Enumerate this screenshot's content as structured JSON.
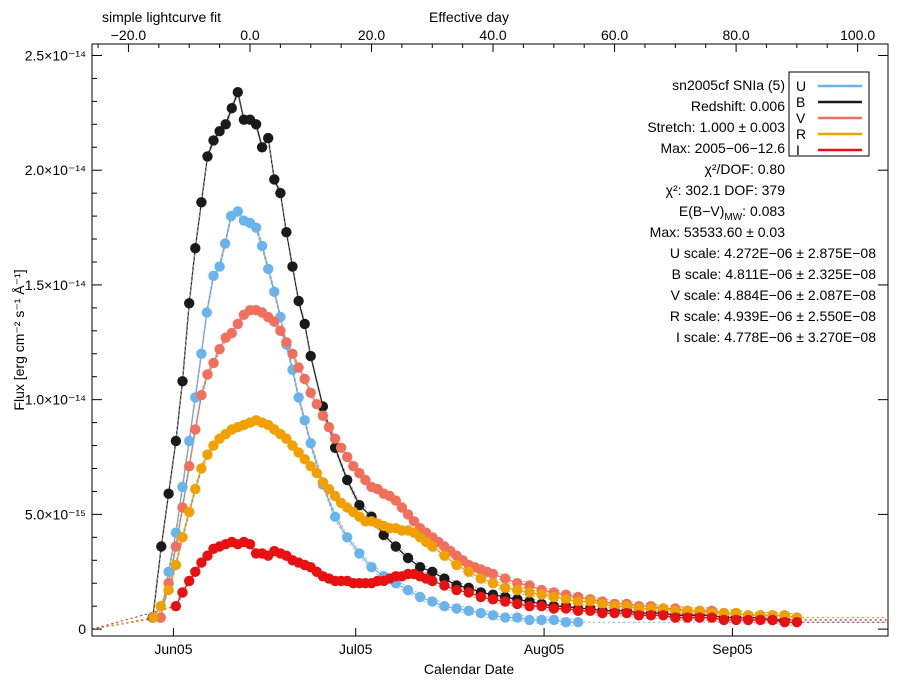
{
  "chart_data": {
    "type": "scatter",
    "title": "simple lightcurve fit",
    "top_axis": {
      "label": "Effective day",
      "range": [
        -26.0,
        105.0
      ],
      "ticks": [
        {
          "v": -20,
          "t": "−20.0"
        },
        {
          "v": 0,
          "t": "0.0"
        },
        {
          "v": 20,
          "t": "20.0"
        },
        {
          "v": 40,
          "t": "40.0"
        },
        {
          "v": 60,
          "t": "60.0"
        },
        {
          "v": 80,
          "t": "80.0"
        },
        {
          "v": 100,
          "t": "100.0"
        }
      ]
    },
    "bottom_axis": {
      "label": "Calendar Date",
      "ticks": [
        {
          "v": -12.6,
          "t": "Jun05"
        },
        {
          "v": 17.4,
          "t": "Jul05"
        },
        {
          "v": 48.4,
          "t": "Aug05"
        },
        {
          "v": 79.4,
          "t": "Sep05"
        }
      ]
    },
    "y_axis": {
      "label": "Flux [erg cm⁻² s⁻¹ Å⁻¹]",
      "range": [
        -3e-16,
        2.55e-14
      ],
      "ticks": [
        {
          "v": 0,
          "t": "0"
        },
        {
          "v": 5e-15,
          "t": "5.0×10⁻¹⁵"
        },
        {
          "v": 1e-14,
          "t": "1.0×10⁻¹⁴"
        },
        {
          "v": 1.5e-14,
          "t": "1.5×10⁻¹⁴"
        },
        {
          "v": 2e-14,
          "t": "2.0×10⁻¹⁴"
        },
        {
          "v": 2.5e-14,
          "t": "2.5×10⁻¹⁴"
        }
      ]
    },
    "grid": false,
    "legend_position": "top-right",
    "series": [
      {
        "name": "U",
        "color": "#6ab4ee",
        "x": [
          -14.7,
          -13.4,
          -12.2,
          -11.1,
          -10.0,
          -9.0,
          -8.0,
          -7.1,
          -6.0,
          -5.0,
          -4.1,
          -3.1,
          -2.0,
          -1.0,
          0.0,
          1.0,
          2.0,
          3.0,
          4.0,
          5.0,
          6.0,
          7.0,
          8.0,
          9.0,
          10.0,
          12.0,
          14.0,
          16.0,
          18.0,
          20.0,
          22.0,
          24.0,
          26.0,
          28.0,
          30.0,
          32.0,
          34.0,
          36.0,
          38.0,
          40.0,
          42.0,
          44.0,
          46.0,
          48.0,
          50.0,
          52.0,
          54.0
        ],
        "y": [
          0.05,
          0.25,
          0.42,
          0.62,
          0.82,
          1.01,
          1.2,
          1.38,
          1.54,
          1.58,
          1.68,
          1.8,
          1.82,
          1.78,
          1.77,
          1.75,
          1.67,
          1.57,
          1.47,
          1.36,
          1.24,
          1.13,
          1.01,
          0.91,
          0.81,
          0.63,
          0.49,
          0.4,
          0.33,
          0.27,
          0.23,
          0.2,
          0.17,
          0.14,
          0.12,
          0.1,
          0.09,
          0.08,
          0.07,
          0.06,
          0.05,
          0.05,
          0.04,
          0.04,
          0.04,
          0.03,
          0.03
        ]
      },
      {
        "name": "B",
        "color": "#1a1a1a",
        "x": [
          -16.0,
          -14.6,
          -13.4,
          -12.2,
          -11.1,
          -10.0,
          -9.0,
          -8.0,
          -7.0,
          -6.0,
          -5.0,
          -4.0,
          -3.0,
          -2.0,
          -1.0,
          0.0,
          1.0,
          2.0,
          3.0,
          4.0,
          5.0,
          6.0,
          7.0,
          8.0,
          9.0,
          10.0,
          12.0,
          14.0,
          16.0,
          18.0,
          20.0,
          22.0,
          24.0,
          26.0,
          28.0,
          30.0,
          32.0,
          34.0,
          36.0,
          38.0,
          40.0,
          42.0,
          44.0,
          46.0,
          48.0,
          50.0,
          52.0,
          54.0,
          56.0,
          58.0,
          60.0,
          62.0,
          64.0,
          66.0,
          68.0,
          70.0,
          72.0,
          74.0,
          76.0,
          78.0,
          80.0,
          82.0,
          84.0,
          86.0,
          88.0
        ],
        "y": [
          0.05,
          0.36,
          0.59,
          0.82,
          1.08,
          1.42,
          1.66,
          1.86,
          2.06,
          2.13,
          2.17,
          2.2,
          2.27,
          2.34,
          2.22,
          2.22,
          2.2,
          2.1,
          2.14,
          1.96,
          1.9,
          1.73,
          1.58,
          1.43,
          1.33,
          1.19,
          0.97,
          0.79,
          0.65,
          0.54,
          0.49,
          0.41,
          0.36,
          0.31,
          0.27,
          0.25,
          0.22,
          0.19,
          0.18,
          0.16,
          0.15,
          0.14,
          0.13,
          0.12,
          0.11,
          0.1,
          0.1,
          0.09,
          0.09,
          0.08,
          0.08,
          0.08,
          0.07,
          0.07,
          0.07,
          0.06,
          0.06,
          0.06,
          0.06,
          0.05,
          0.05,
          0.05,
          0.05,
          0.04,
          0.04
        ]
      },
      {
        "name": "V",
        "color": "#f0705c",
        "x": [
          -14.7,
          -13.4,
          -12.2,
          -11.1,
          -10.0,
          -9.0,
          -8.0,
          -7.0,
          -6.0,
          -5.0,
          -4.0,
          -3.0,
          -2.0,
          -1.0,
          0.0,
          1.0,
          2.0,
          3.0,
          4.0,
          5.0,
          6.0,
          7.0,
          8.0,
          9.0,
          10.0,
          11.0,
          12.0,
          13.0,
          14.0,
          15.0,
          16.0,
          17.0,
          18.0,
          19.0,
          20.0,
          21.0,
          22.0,
          23.0,
          24.0,
          25.0,
          26.0,
          27.0,
          28.0,
          29.0,
          30.0,
          31.0,
          32.0,
          33.0,
          34.0,
          35.0,
          36.0,
          37.0,
          38.0,
          39.0,
          40.0,
          42.0,
          44.0,
          46.0,
          48.0,
          50.0,
          52.0,
          54.0,
          56.0,
          58.0,
          60.0,
          62.0,
          64.0,
          66.0,
          68.0,
          70.0,
          72.0,
          74.0,
          76.0,
          78.0,
          80.0,
          82.0,
          84.0,
          86.0,
          88.0,
          90.0
        ],
        "y": [
          0.05,
          0.2,
          0.36,
          0.53,
          0.71,
          0.87,
          1.02,
          1.11,
          1.16,
          1.22,
          1.27,
          1.29,
          1.33,
          1.37,
          1.39,
          1.39,
          1.38,
          1.36,
          1.34,
          1.3,
          1.25,
          1.2,
          1.14,
          1.09,
          1.03,
          0.98,
          0.93,
          0.88,
          0.83,
          0.79,
          0.75,
          0.71,
          0.68,
          0.65,
          0.62,
          0.61,
          0.59,
          0.58,
          0.56,
          0.53,
          0.5,
          0.47,
          0.44,
          0.42,
          0.4,
          0.38,
          0.36,
          0.34,
          0.32,
          0.3,
          0.28,
          0.27,
          0.26,
          0.25,
          0.24,
          0.22,
          0.2,
          0.19,
          0.17,
          0.16,
          0.15,
          0.14,
          0.13,
          0.12,
          0.11,
          0.11,
          0.1,
          0.1,
          0.09,
          0.09,
          0.08,
          0.08,
          0.08,
          0.07,
          0.07,
          0.06,
          0.06,
          0.06,
          0.06,
          0.05
        ]
      },
      {
        "name": "R",
        "color": "#f0a000",
        "x": [
          -15.9,
          -14.7,
          -13.4,
          -12.2,
          -11.1,
          -10.0,
          -9.0,
          -8.0,
          -7.0,
          -6.0,
          -5.0,
          -4.0,
          -3.0,
          -2.0,
          -1.0,
          0.0,
          1.0,
          2.0,
          3.0,
          4.0,
          5.0,
          6.0,
          7.0,
          8.0,
          9.0,
          10.0,
          11.0,
          12.0,
          13.0,
          14.0,
          15.0,
          16.0,
          17.0,
          18.0,
          19.0,
          20.0,
          21.0,
          22.0,
          23.0,
          24.0,
          25.0,
          26.0,
          27.0,
          28.0,
          29.0,
          30.0,
          32.0,
          34.0,
          36.0,
          38.0,
          40.0,
          42.0,
          44.0,
          46.0,
          48.0,
          50.0,
          52.0,
          54.0,
          56.0,
          58.0,
          60.0,
          62.0,
          64.0,
          66.0,
          68.0,
          70.0,
          72.0,
          74.0,
          76.0,
          78.0,
          80.0,
          82.0,
          84.0,
          86.0,
          88.0,
          90.0
        ],
        "y": [
          0.05,
          0.1,
          0.17,
          0.28,
          0.4,
          0.51,
          0.61,
          0.7,
          0.76,
          0.8,
          0.83,
          0.85,
          0.87,
          0.88,
          0.89,
          0.9,
          0.91,
          0.9,
          0.89,
          0.87,
          0.85,
          0.83,
          0.8,
          0.77,
          0.74,
          0.71,
          0.68,
          0.64,
          0.61,
          0.58,
          0.55,
          0.53,
          0.51,
          0.49,
          0.47,
          0.47,
          0.46,
          0.45,
          0.44,
          0.44,
          0.43,
          0.43,
          0.42,
          0.4,
          0.38,
          0.36,
          0.32,
          0.28,
          0.25,
          0.22,
          0.2,
          0.18,
          0.17,
          0.16,
          0.15,
          0.14,
          0.13,
          0.12,
          0.12,
          0.11,
          0.1,
          0.1,
          0.09,
          0.09,
          0.09,
          0.08,
          0.08,
          0.08,
          0.07,
          0.07,
          0.07,
          0.06,
          0.06,
          0.06,
          0.06,
          0.05
        ]
      },
      {
        "name": "I",
        "color": "#e81010",
        "x": [
          -12.2,
          -11.1,
          -10.0,
          -9.0,
          -8.0,
          -7.0,
          -6.0,
          -5.0,
          -4.0,
          -3.0,
          -2.0,
          -1.0,
          0.0,
          1.0,
          2.0,
          3.0,
          4.0,
          5.0,
          6.0,
          7.0,
          8.0,
          9.0,
          10.0,
          11.0,
          12.0,
          13.0,
          14.0,
          15.0,
          16.0,
          17.0,
          18.0,
          19.0,
          20.0,
          21.0,
          22.0,
          23.0,
          24.0,
          25.0,
          26.0,
          27.0,
          28.0,
          29.0,
          30.0,
          32.0,
          34.0,
          36.0,
          38.0,
          40.0,
          42.0,
          44.0,
          46.0,
          48.0,
          50.0,
          52.0,
          54.0,
          56.0,
          58.0,
          60.0,
          62.0,
          64.0,
          66.0,
          68.0,
          70.0,
          72.0,
          74.0,
          76.0,
          78.0,
          80.0,
          82.0,
          84.0,
          86.0,
          88.0,
          90.0
        ],
        "y": [
          0.1,
          0.16,
          0.21,
          0.25,
          0.29,
          0.32,
          0.35,
          0.36,
          0.37,
          0.38,
          0.37,
          0.38,
          0.37,
          0.33,
          0.33,
          0.32,
          0.34,
          0.33,
          0.32,
          0.3,
          0.29,
          0.28,
          0.27,
          0.25,
          0.23,
          0.22,
          0.21,
          0.21,
          0.21,
          0.2,
          0.2,
          0.2,
          0.2,
          0.21,
          0.21,
          0.22,
          0.23,
          0.23,
          0.24,
          0.24,
          0.23,
          0.22,
          0.21,
          0.19,
          0.17,
          0.16,
          0.14,
          0.13,
          0.12,
          0.11,
          0.1,
          0.1,
          0.09,
          0.09,
          0.08,
          0.08,
          0.07,
          0.07,
          0.07,
          0.06,
          0.06,
          0.06,
          0.05,
          0.05,
          0.05,
          0.05,
          0.04,
          0.04,
          0.04,
          0.04,
          0.04,
          0.03,
          0.03
        ]
      }
    ],
    "y_scale_of_values": 1e-14
  },
  "legend": {
    "entries": [
      {
        "label": "U",
        "color": "#6ab4ee"
      },
      {
        "label": "B",
        "color": "#1a1a1a"
      },
      {
        "label": "V",
        "color": "#f0705c"
      },
      {
        "label": "R",
        "color": "#f0a000"
      },
      {
        "label": "I",
        "color": "#e81010"
      }
    ]
  },
  "info": {
    "name": "sn2005cf  SNIa (5)",
    "redshift": "Redshift: 0.006",
    "stretch": "Stretch: 1.000 ± 0.003",
    "max": "Max: 2005−06−12.6",
    "chi2dof": "χ²/DOF: 0.80",
    "chi2": "χ²: 302.1   DOF: 379",
    "ebv": "E(B−V)",
    "ebv_sub": "MW",
    "ebv_value": ": 0.083",
    "maxmjd": "Max: 53533.60 ± 0.03",
    "uscale": "U scale: 4.272E−06 ± 2.875E−08",
    "bscale": "B scale: 4.811E−06 ± 2.325E−08",
    "vscale": "V scale: 4.884E−06 ± 2.087E−08",
    "rscale": "R scale: 4.939E−06 ± 2.550E−08",
    "iscale": "I scale: 4.778E−06 ± 3.270E−08",
    "chi_color": "#f08c00"
  }
}
